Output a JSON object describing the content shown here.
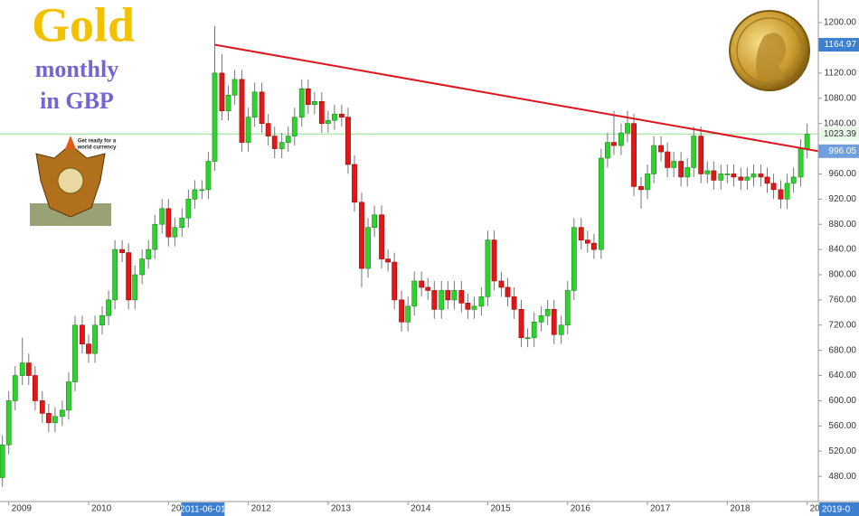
{
  "chart_data": {
    "type": "candlestick",
    "title": "Gold",
    "subtitle_lines": [
      "monthly",
      "in GBP"
    ],
    "image_text": [
      "Get ready for a",
      "world currency"
    ],
    "x": [
      2008.92,
      2009.0,
      2009.08,
      2009.17,
      2009.25,
      2009.33,
      2009.42,
      2009.5,
      2009.58,
      2009.67,
      2009.75,
      2009.83,
      2009.92,
      2010.0,
      2010.08,
      2010.17,
      2010.25,
      2010.33,
      2010.42,
      2010.5,
      2010.58,
      2010.67,
      2010.75,
      2010.83,
      2010.92,
      2011.0,
      2011.08,
      2011.17,
      2011.25,
      2011.33,
      2011.42,
      2011.5,
      2011.58,
      2011.67,
      2011.75,
      2011.83,
      2011.92,
      2012.0,
      2012.08,
      2012.17,
      2012.25,
      2012.33,
      2012.42,
      2012.5,
      2012.58,
      2012.67,
      2012.75,
      2012.83,
      2012.92,
      2013.0,
      2013.08,
      2013.17,
      2013.25,
      2013.33,
      2013.42,
      2013.5,
      2013.58,
      2013.67,
      2013.75,
      2013.83,
      2013.92,
      2014.0,
      2014.08,
      2014.17,
      2014.25,
      2014.33,
      2014.42,
      2014.5,
      2014.58,
      2014.67,
      2014.75,
      2014.83,
      2014.92,
      2015.0,
      2015.08,
      2015.17,
      2015.25,
      2015.33,
      2015.42,
      2015.5,
      2015.58,
      2015.67,
      2015.75,
      2015.83,
      2015.92,
      2016.0,
      2016.08,
      2016.17,
      2016.25,
      2016.33,
      2016.42,
      2016.5,
      2016.58,
      2016.67,
      2016.75,
      2016.83,
      2016.92,
      2017.0,
      2017.08,
      2017.17,
      2017.25,
      2017.33,
      2017.42,
      2017.5,
      2017.58,
      2017.67,
      2017.75,
      2017.83,
      2017.92,
      2018.0,
      2018.08,
      2018.17,
      2018.25,
      2018.33,
      2018.42,
      2018.5,
      2018.58,
      2018.67,
      2018.75,
      2018.83,
      2018.92,
      2019.0
    ],
    "open": [
      478,
      530,
      600,
      640,
      660,
      640,
      600,
      580,
      565,
      575,
      585,
      630,
      720,
      690,
      675,
      720,
      735,
      760,
      840,
      835,
      760,
      800,
      825,
      840,
      880,
      905,
      860,
      875,
      890,
      920,
      935,
      935,
      980,
      1120,
      1060,
      1085,
      1110,
      1010,
      1050,
      1090,
      1040,
      1020,
      1000,
      1010,
      1020,
      1050,
      1095,
      1070,
      1075,
      1040,
      1045,
      1055,
      1050,
      975,
      915,
      810,
      875,
      895,
      825,
      820,
      760,
      725,
      750,
      790,
      780,
      775,
      745,
      775,
      760,
      775,
      755,
      745,
      750,
      765,
      855,
      790,
      780,
      765,
      745,
      700,
      700,
      725,
      735,
      745,
      705,
      720,
      775,
      875,
      855,
      850,
      840,
      985,
      1010,
      1005,
      1025,
      1040,
      940,
      935,
      960,
      1005,
      995,
      970,
      980,
      955,
      970,
      1020,
      960,
      965,
      950,
      960,
      960,
      955,
      950,
      955,
      960,
      955,
      945,
      935,
      920,
      945,
      955,
      1000
    ],
    "high": [
      545,
      615,
      655,
      700,
      675,
      655,
      615,
      595,
      590,
      600,
      645,
      735,
      735,
      705,
      735,
      750,
      775,
      855,
      855,
      850,
      815,
      840,
      855,
      895,
      920,
      920,
      890,
      905,
      935,
      950,
      950,
      995,
      1195,
      1150,
      1100,
      1125,
      1125,
      1065,
      1105,
      1105,
      1055,
      1035,
      1025,
      1035,
      1065,
      1110,
      1110,
      1090,
      1090,
      1060,
      1070,
      1070,
      1065,
      990,
      930,
      890,
      910,
      910,
      840,
      835,
      775,
      765,
      805,
      805,
      795,
      790,
      790,
      790,
      790,
      790,
      770,
      765,
      780,
      870,
      870,
      805,
      795,
      780,
      760,
      715,
      740,
      750,
      760,
      760,
      735,
      790,
      890,
      890,
      870,
      865,
      1000,
      1025,
      1060,
      1040,
      1060,
      1055,
      955,
      975,
      1020,
      1020,
      1010,
      995,
      995,
      985,
      1035,
      1035,
      980,
      980,
      975,
      975,
      975,
      970,
      970,
      975,
      975,
      970,
      960,
      950,
      960,
      970,
      1015,
      1040
    ],
    "low": [
      463,
      515,
      585,
      625,
      625,
      585,
      565,
      550,
      550,
      560,
      570,
      615,
      675,
      660,
      660,
      705,
      720,
      745,
      820,
      745,
      745,
      785,
      810,
      825,
      865,
      845,
      845,
      860,
      875,
      905,
      920,
      920,
      965,
      1045,
      1045,
      1070,
      995,
      995,
      1035,
      1025,
      1005,
      985,
      985,
      995,
      1005,
      1035,
      1055,
      1055,
      1025,
      1025,
      1030,
      1035,
      960,
      900,
      780,
      795,
      860,
      810,
      805,
      745,
      710,
      710,
      735,
      765,
      760,
      730,
      730,
      745,
      745,
      740,
      730,
      730,
      735,
      750,
      775,
      765,
      750,
      730,
      685,
      685,
      685,
      710,
      720,
      690,
      690,
      705,
      760,
      840,
      835,
      825,
      825,
      970,
      990,
      990,
      1010,
      925,
      905,
      920,
      945,
      980,
      955,
      955,
      940,
      940,
      955,
      945,
      945,
      935,
      935,
      945,
      940,
      935,
      935,
      940,
      940,
      930,
      920,
      905,
      905,
      930,
      940,
      985
    ],
    "close": [
      530,
      600,
      640,
      660,
      640,
      600,
      580,
      565,
      575,
      585,
      630,
      720,
      690,
      675,
      720,
      735,
      760,
      840,
      835,
      760,
      800,
      825,
      840,
      880,
      905,
      860,
      875,
      890,
      920,
      935,
      935,
      980,
      1120,
      1060,
      1085,
      1110,
      1010,
      1050,
      1090,
      1040,
      1020,
      1000,
      1010,
      1020,
      1050,
      1095,
      1070,
      1075,
      1040,
      1045,
      1055,
      1050,
      975,
      915,
      810,
      875,
      895,
      825,
      820,
      760,
      725,
      750,
      790,
      780,
      775,
      745,
      775,
      760,
      775,
      755,
      745,
      750,
      765,
      855,
      790,
      780,
      765,
      745,
      700,
      700,
      725,
      735,
      745,
      705,
      720,
      775,
      875,
      855,
      850,
      840,
      985,
      1010,
      1005,
      1025,
      1040,
      940,
      935,
      960,
      1005,
      995,
      970,
      980,
      955,
      970,
      1020,
      960,
      965,
      950,
      960,
      960,
      955,
      950,
      955,
      960,
      955,
      945,
      935,
      920,
      945,
      955,
      1000,
      1023
    ],
    "up_color": "#2fd32f",
    "down_color": "#e01818",
    "xlim": [
      2008.89,
      2019.14
    ],
    "ylim": [
      440,
      1236
    ],
    "xticks": [
      2009,
      2010,
      2011,
      2012,
      2013,
      2014,
      2015,
      2016,
      2017,
      2018,
      2019
    ],
    "yticks": [
      {
        "value": 480,
        "label": "480.00"
      },
      {
        "value": 520,
        "label": "520.00"
      },
      {
        "value": 560,
        "label": "560.00"
      },
      {
        "value": 600,
        "label": "600.00"
      },
      {
        "value": 640,
        "label": "640.00"
      },
      {
        "value": 680,
        "label": "680.00"
      },
      {
        "value": 720,
        "label": "720.00"
      },
      {
        "value": 760,
        "label": "760.00"
      },
      {
        "value": 800,
        "label": "800.00"
      },
      {
        "value": 840,
        "label": "840.00"
      },
      {
        "value": 880,
        "label": "880.00"
      },
      {
        "value": 920,
        "label": "920.00"
      },
      {
        "value": 960,
        "label": "960.00"
      },
      {
        "value": 1000,
        "label": "1000.00"
      },
      {
        "value": 1040,
        "label": "1040.00"
      },
      {
        "value": 1080,
        "label": "1080.00"
      },
      {
        "value": 1120,
        "label": "1120.00"
      },
      {
        "value": 1160,
        "label": "1160.00"
      },
      {
        "value": 1200,
        "label": "1200.00"
      }
    ],
    "grid": false,
    "trendline": {
      "x": [
        2011.58,
        2019.14
      ],
      "y": [
        1164.97,
        996.05
      ],
      "color": "#e0141c"
    },
    "price_markers": [
      {
        "value": 1164.97,
        "color": "#3d7fd0",
        "text_color": "#ffffff"
      },
      {
        "value": 1023.39,
        "color": "#e9f7e9",
        "text_color": "#333333"
      },
      {
        "value": 996.05,
        "color": "#6f9fdc",
        "text_color": "#ffffff"
      }
    ],
    "current_line": {
      "value": 1023.39,
      "color": "#8fe08f"
    },
    "crosshair_date": {
      "x": 2011.42,
      "label": "2011-06-01"
    },
    "last_date_label": "2019-0"
  }
}
